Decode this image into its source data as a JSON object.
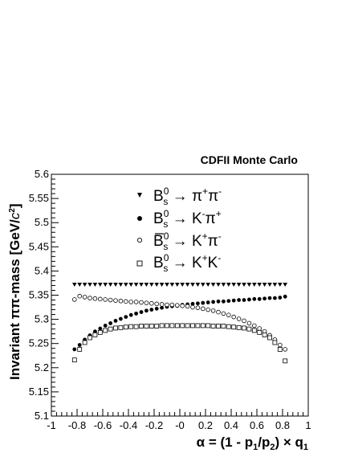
{
  "chart_data": {
    "type": "scatter",
    "title": "CDFII Monte Carlo",
    "xlabel": "α = (1 - p1/p2) × q1",
    "ylabel": "Invariant ππ-mass [GeV/c²]",
    "xlim": [
      -1,
      1
    ],
    "ylim": [
      5.1,
      5.6
    ],
    "x_ticks": [
      "-1",
      "-0.8",
      "-0.6",
      "-0.4",
      "-0.2",
      "-0",
      "0.2",
      "0.4",
      "0.6",
      "0.8",
      "1"
    ],
    "y_ticks": [
      "5.1",
      "5.15",
      "5.2",
      "5.25",
      "5.3",
      "5.35",
      "5.4",
      "5.45",
      "5.5",
      "5.55",
      "5.6"
    ],
    "grid": false,
    "legend_position": "top-center",
    "x": [
      -0.82,
      -0.78,
      -0.74,
      -0.7,
      -0.66,
      -0.62,
      -0.58,
      -0.54,
      -0.5,
      -0.46,
      -0.42,
      -0.38,
      -0.34,
      -0.3,
      -0.26,
      -0.22,
      -0.18,
      -0.14,
      -0.1,
      -0.06,
      -0.02,
      0.02,
      0.06,
      0.1,
      0.14,
      0.18,
      0.22,
      0.26,
      0.3,
      0.34,
      0.38,
      0.42,
      0.46,
      0.5,
      0.54,
      0.58,
      0.62,
      0.66,
      0.7,
      0.74,
      0.78,
      0.82
    ],
    "series": [
      {
        "name": "Bs0 → π+π-",
        "marker": "triangle-down",
        "values": [
          5.372,
          5.372,
          5.372,
          5.372,
          5.372,
          5.372,
          5.372,
          5.372,
          5.372,
          5.372,
          5.372,
          5.372,
          5.372,
          5.372,
          5.372,
          5.372,
          5.372,
          5.372,
          5.372,
          5.372,
          5.372,
          5.372,
          5.372,
          5.372,
          5.372,
          5.372,
          5.372,
          5.372,
          5.372,
          5.372,
          5.372,
          5.372,
          5.372,
          5.372,
          5.372,
          5.372,
          5.372,
          5.372,
          5.372,
          5.372,
          5.372,
          5.372
        ]
      },
      {
        "name": "Bs0 → K-π+",
        "marker": "filled-circle",
        "values": [
          5.238,
          5.247,
          5.258,
          5.267,
          5.275,
          5.281,
          5.287,
          5.292,
          5.297,
          5.301,
          5.305,
          5.309,
          5.312,
          5.315,
          5.318,
          5.32,
          5.322,
          5.324,
          5.326,
          5.327,
          5.328,
          5.33,
          5.331,
          5.332,
          5.333,
          5.334,
          5.335,
          5.336,
          5.337,
          5.337,
          5.338,
          5.339,
          5.34,
          5.34,
          5.341,
          5.342,
          5.342,
          5.343,
          5.344,
          5.344,
          5.345,
          5.347
        ]
      },
      {
        "name": "B̄s0 → K+π-",
        "marker": "open-circle",
        "values": [
          5.341,
          5.348,
          5.346,
          5.344,
          5.343,
          5.342,
          5.341,
          5.34,
          5.339,
          5.338,
          5.337,
          5.336,
          5.336,
          5.335,
          5.334,
          5.333,
          5.332,
          5.331,
          5.33,
          5.33,
          5.329,
          5.328,
          5.327,
          5.325,
          5.324,
          5.322,
          5.32,
          5.318,
          5.315,
          5.312,
          5.309,
          5.305,
          5.301,
          5.297,
          5.292,
          5.287,
          5.281,
          5.275,
          5.267,
          5.258,
          5.247,
          5.238
        ]
      },
      {
        "name": "Bs0 → K+K-",
        "marker": "open-square",
        "values": [
          5.216,
          5.238,
          5.252,
          5.262,
          5.268,
          5.273,
          5.277,
          5.28,
          5.282,
          5.283,
          5.284,
          5.285,
          5.285,
          5.286,
          5.286,
          5.286,
          5.286,
          5.287,
          5.287,
          5.287,
          5.287,
          5.287,
          5.287,
          5.287,
          5.287,
          5.287,
          5.287,
          5.286,
          5.286,
          5.286,
          5.285,
          5.284,
          5.283,
          5.282,
          5.28,
          5.277,
          5.273,
          5.268,
          5.262,
          5.252,
          5.238,
          5.214
        ]
      }
    ]
  },
  "legend": [
    {
      "base": "B",
      "sup": "0",
      "sub": "s",
      "arrow": " → ",
      "p1": "π",
      "p1sup": "+",
      "p2": "π",
      "p2sup": "-"
    },
    {
      "base": "B",
      "sup": "0",
      "sub": "s",
      "arrow": " → ",
      "p1": "K",
      "p1sup": "-",
      "p2": "π",
      "p2sup": "+"
    },
    {
      "base": "B",
      "sup": "0",
      "sub": "s",
      "arrow": " → ",
      "p1": "K",
      "p1sup": "+",
      "p2": "π",
      "p2sup": "-"
    },
    {
      "base": "B",
      "sup": "0",
      "sub": "s",
      "arrow": " → ",
      "p1": "K",
      "p1sup": "+",
      "p2": "K",
      "p2sup": "-"
    }
  ],
  "x_axis_title": {
    "lead": "α = (1 - p",
    "sub1": "1",
    "mid": "/p",
    "sub2": "2",
    "close": ") × q",
    "sub3": "1"
  },
  "y_axis_title": {
    "lead": "Invariant  ππ-mass [GeV/",
    "unit_c": "c",
    "unit_pow": "2",
    "close": "]"
  }
}
